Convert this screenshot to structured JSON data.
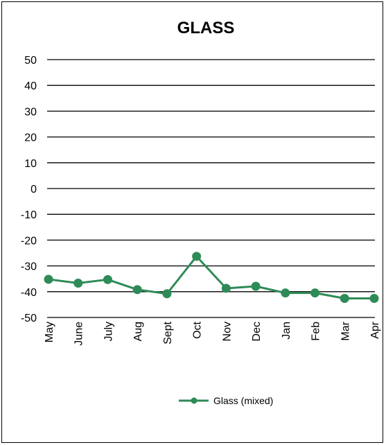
{
  "chart_data": {
    "type": "line",
    "title": "GLASS",
    "xlabel": "",
    "ylabel": "",
    "categories": [
      "May",
      "June",
      "July",
      "Aug",
      "Sept",
      "Oct",
      "Nov",
      "Dec",
      "Jan",
      "Feb",
      "Mar",
      "Apr"
    ],
    "series": [
      {
        "name": "Glass (mixed)",
        "color": "#2e8b57",
        "values": [
          -35.2,
          -36.7,
          -35.3,
          -39.2,
          -40.8,
          -26.3,
          -38.7,
          -37.9,
          -40.5,
          -40.5,
          -42.6,
          -42.6
        ]
      }
    ],
    "ylim": [
      -50,
      50
    ],
    "yticks": [
      50,
      40,
      30,
      20,
      10,
      0,
      -10,
      -20,
      -30,
      -40,
      -50
    ],
    "grid": true,
    "legend": "bottom"
  }
}
